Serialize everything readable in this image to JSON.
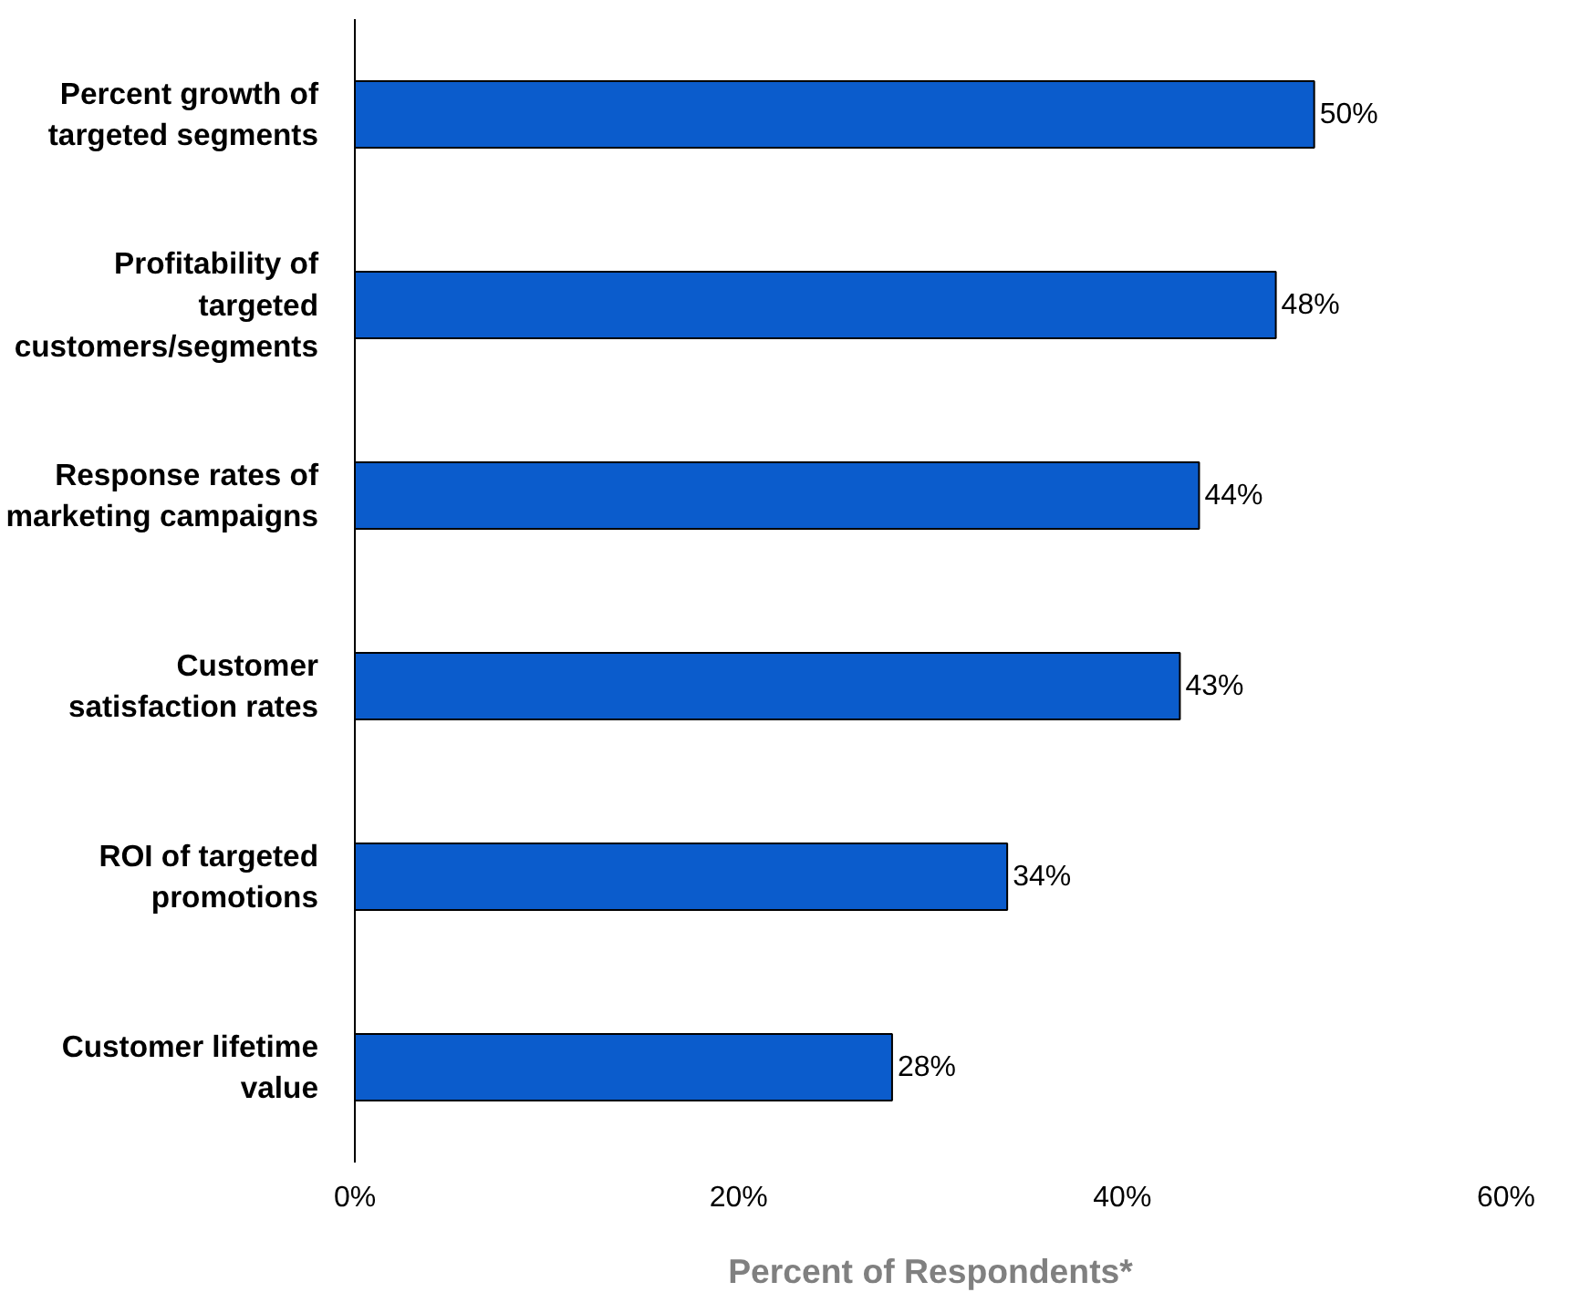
{
  "chart_data": {
    "type": "bar",
    "orientation": "horizontal",
    "xlabel": "Percent of Respondents*",
    "categories": [
      "Percent growth of targeted segments",
      "Profitability of targeted customers/segments",
      "Response rates of marketing campaigns",
      "Customer satisfaction rates",
      "ROI of targeted promotions",
      "Customer lifetime value"
    ],
    "values": [
      50,
      48,
      44,
      43,
      34,
      28
    ],
    "value_labels": [
      "50%",
      "48%",
      "44%",
      "43%",
      "34%",
      "28%"
    ],
    "color": "#0b5ccc",
    "xlim": [
      0,
      60
    ],
    "xticks": [
      {
        "value": 0,
        "label": "0%"
      },
      {
        "value": 20,
        "label": "20%"
      },
      {
        "value": 40,
        "label": "40%"
      },
      {
        "value": 60,
        "label": "60%"
      }
    ],
    "grid": false
  }
}
